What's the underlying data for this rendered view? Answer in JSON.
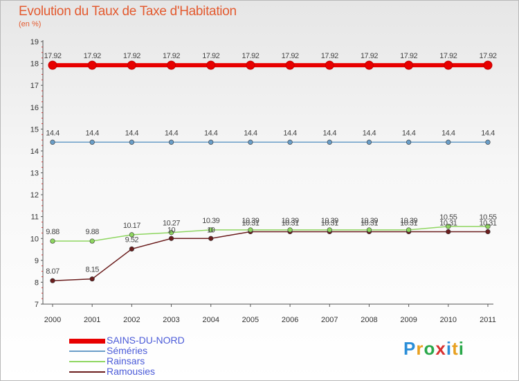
{
  "chart_data": {
    "type": "line",
    "title": "Evolution du Taux de Taxe d'Habitation",
    "ylabel": "(en %)",
    "xlabel": "",
    "ylim": [
      7,
      19
    ],
    "yticks": [
      "7",
      "8",
      "9",
      "10",
      "11",
      "12",
      "13",
      "14",
      "15",
      "16",
      "17",
      "18",
      "19"
    ],
    "categories": [
      "2000",
      "2001",
      "2002",
      "2003",
      "2004",
      "2005",
      "2006",
      "2007",
      "2008",
      "2009",
      "2010",
      "2011"
    ],
    "grid": false,
    "legend_position": "bottom-left",
    "series": [
      {
        "name": "SAINS-DU-NORD",
        "color": "#e80000",
        "values": [
          17.92,
          17.92,
          17.92,
          17.92,
          17.92,
          17.92,
          17.92,
          17.92,
          17.92,
          17.92,
          17.92,
          17.92
        ],
        "labels": [
          "17.92",
          "17.92",
          "17.92",
          "17.92",
          "17.92",
          "17.92",
          "17.92",
          "17.92",
          "17.92",
          "17.92",
          "17.92",
          "17.92"
        ]
      },
      {
        "name": "Séméries",
        "color": "#6a9ec8",
        "values": [
          14.4,
          14.4,
          14.4,
          14.4,
          14.4,
          14.4,
          14.4,
          14.4,
          14.4,
          14.4,
          14.4,
          14.4
        ],
        "labels": [
          "14.4",
          "14.4",
          "14.4",
          "14.4",
          "14.4",
          "14.4",
          "14.4",
          "14.4",
          "14.4",
          "14.4",
          "14.4",
          "14.4"
        ]
      },
      {
        "name": "Rainsars",
        "color": "#8ed660",
        "values": [
          9.88,
          9.88,
          10.17,
          10.27,
          10.39,
          10.39,
          10.39,
          10.39,
          10.39,
          10.39,
          10.55,
          10.55
        ],
        "labels": [
          "9.88",
          "9.88",
          "10.17",
          "10.27",
          "10.39",
          "10.39",
          "10.39",
          "10.39",
          "10.39",
          "10.39",
          "10.55",
          "10.55"
        ]
      },
      {
        "name": "Ramousies",
        "color": "#6b1d1d",
        "values": [
          8.07,
          8.15,
          9.52,
          10,
          10,
          10.31,
          10.31,
          10.31,
          10.31,
          10.31,
          10.31,
          10.31
        ],
        "labels": [
          "8.07",
          "8.15",
          "9.52",
          "10",
          "10",
          "10.31",
          "10.31",
          "10.31",
          "10.31",
          "10.31",
          "10.31",
          "10.31"
        ]
      }
    ]
  },
  "legend": {
    "items": [
      {
        "label": "SAINS-DU-NORD",
        "color": "#e80000",
        "thick": true
      },
      {
        "label": "Séméries",
        "color": "#6a9ec8",
        "thick": false
      },
      {
        "label": "Rainsars",
        "color": "#8ed660",
        "thick": false
      },
      {
        "label": "Ramousies",
        "color": "#6b1d1d",
        "thick": false
      }
    ]
  },
  "logo": {
    "text": "Proxiti",
    "letters": [
      "P",
      "r",
      "o",
      "x",
      "i",
      "t",
      "i"
    ],
    "colors": [
      "#2a8ed8",
      "#e8a020",
      "#2aa84a",
      "#d83030",
      "#2a8ed8",
      "#e8a020",
      "#2aa84a"
    ]
  }
}
